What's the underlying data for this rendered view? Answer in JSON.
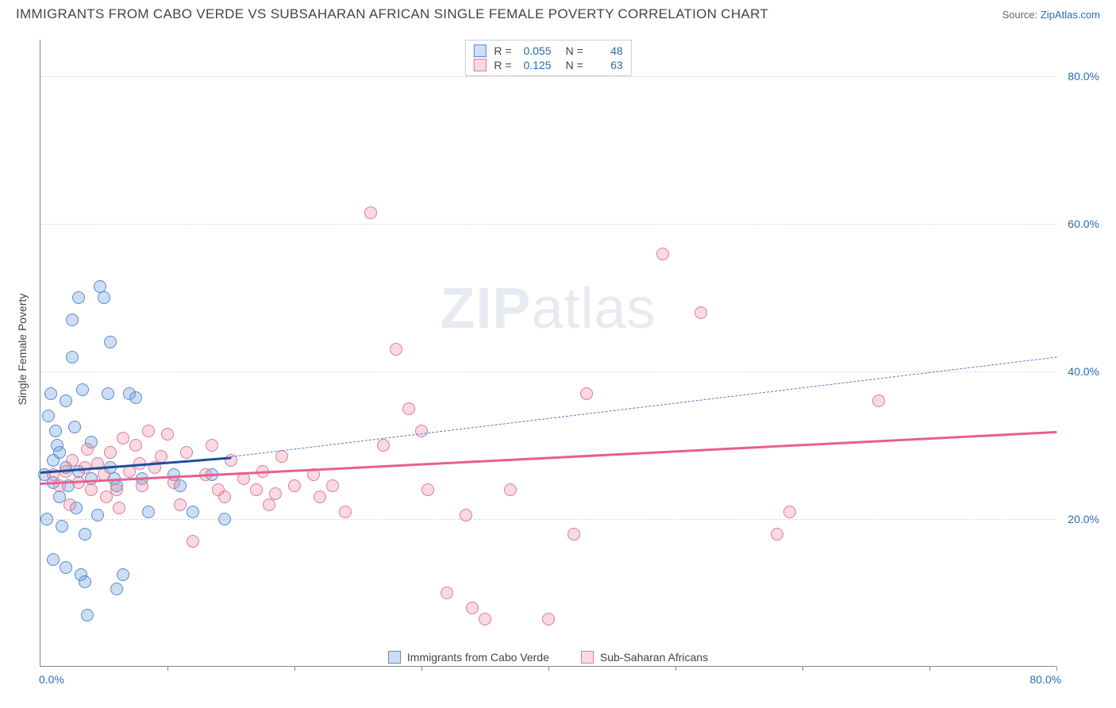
{
  "header": {
    "title": "IMMIGRANTS FROM CABO VERDE VS SUBSAHARAN AFRICAN SINGLE FEMALE POVERTY CORRELATION CHART",
    "source_prefix": "Source: ",
    "source_name": "ZipAtlas.com"
  },
  "chart": {
    "type": "scatter",
    "ylabel": "Single Female Poverty",
    "watermark_bold": "ZIP",
    "watermark_rest": "atlas",
    "xlim": [
      0,
      80
    ],
    "ylim": [
      0,
      85
    ],
    "background_color": "#ffffff",
    "grid_color": "#dddddd",
    "axis_color": "#888888",
    "yticks": [
      20,
      40,
      60,
      80
    ],
    "ytick_labels": [
      "20.0%",
      "40.0%",
      "60.0%",
      "80.0%"
    ],
    "xticks_marks": [
      10,
      20,
      30,
      40,
      50,
      60,
      70,
      80
    ],
    "xtick_labels": [
      {
        "x": 0,
        "label": "0.0%"
      },
      {
        "x": 80,
        "label": "80.0%"
      }
    ],
    "point_radius": 8,
    "point_border_width": 1,
    "series": [
      {
        "id": "cabo_verde",
        "label": "Immigrants from Cabo Verde",
        "fill_color": "rgba(110, 160, 220, 0.35)",
        "stroke_color": "#5a8ac9",
        "R": "0.055",
        "N": "48",
        "trend": {
          "x1": 0,
          "y1": 26.5,
          "x2": 15,
          "y2": 28.5,
          "color": "#1e4e9c",
          "width": 2.5
        },
        "trend_ext": {
          "x1": 15,
          "y1": 28.5,
          "x2": 80,
          "y2": 42.0,
          "color": "#4a7fc7"
        },
        "points": [
          [
            0.3,
            26
          ],
          [
            0.5,
            20
          ],
          [
            0.6,
            34
          ],
          [
            0.8,
            37
          ],
          [
            1.0,
            25
          ],
          [
            1.0,
            28
          ],
          [
            1.2,
            32
          ],
          [
            1.3,
            30
          ],
          [
            1.5,
            29
          ],
          [
            1.5,
            23
          ],
          [
            1.7,
            19
          ],
          [
            2.0,
            27
          ],
          [
            2.0,
            36
          ],
          [
            2.2,
            24.5
          ],
          [
            2.5,
            47
          ],
          [
            2.5,
            42
          ],
          [
            2.8,
            21.5
          ],
          [
            3.0,
            26.5
          ],
          [
            3.0,
            50
          ],
          [
            3.2,
            12.5
          ],
          [
            3.5,
            11.5
          ],
          [
            3.5,
            18
          ],
          [
            3.7,
            7.0
          ],
          [
            4.0,
            25.5
          ],
          [
            4.0,
            30.5
          ],
          [
            4.5,
            20.5
          ],
          [
            4.7,
            51.5
          ],
          [
            5.0,
            50.0
          ],
          [
            5.3,
            37.0
          ],
          [
            5.5,
            44.0
          ],
          [
            5.5,
            27
          ],
          [
            5.8,
            25.5
          ],
          [
            6.0,
            24.5
          ],
          [
            6.0,
            10.5
          ],
          [
            6.5,
            12.5
          ],
          [
            7.0,
            37
          ],
          [
            7.5,
            36.5
          ],
          [
            8.0,
            25.5
          ],
          [
            8.5,
            21
          ],
          [
            10.5,
            26
          ],
          [
            11.0,
            24.5
          ],
          [
            12.0,
            21
          ],
          [
            13.5,
            26
          ],
          [
            14.5,
            20
          ],
          [
            1.0,
            14.5
          ],
          [
            2.0,
            13.5
          ],
          [
            2.7,
            32.5
          ],
          [
            3.3,
            37.5
          ]
        ]
      },
      {
        "id": "subsaharan",
        "label": "Sub-Saharan Africans",
        "fill_color": "rgba(235, 130, 160, 0.3)",
        "stroke_color": "#e07a9a",
        "R": "0.125",
        "N": "63",
        "trend": {
          "x1": 0,
          "y1": 25.0,
          "x2": 80,
          "y2": 32.0,
          "color": "#e85f8e",
          "width": 2.5
        },
        "points": [
          [
            1.0,
            26
          ],
          [
            1.5,
            24.5
          ],
          [
            2.0,
            26.5
          ],
          [
            2.5,
            28
          ],
          [
            3.0,
            25
          ],
          [
            3.5,
            27
          ],
          [
            4.0,
            24
          ],
          [
            4.5,
            27.5
          ],
          [
            5.0,
            26
          ],
          [
            5.5,
            29
          ],
          [
            6.0,
            24
          ],
          [
            6.5,
            31
          ],
          [
            7.0,
            26.5
          ],
          [
            7.5,
            30
          ],
          [
            8.0,
            24.5
          ],
          [
            8.5,
            32
          ],
          [
            9.0,
            27
          ],
          [
            9.5,
            28.5
          ],
          [
            10.0,
            31.5
          ],
          [
            10.5,
            25
          ],
          [
            11.0,
            22
          ],
          [
            11.5,
            29
          ],
          [
            12.0,
            17
          ],
          [
            13.0,
            26
          ],
          [
            13.5,
            30
          ],
          [
            14.0,
            24
          ],
          [
            14.5,
            23
          ],
          [
            15.0,
            28
          ],
          [
            16.0,
            25.5
          ],
          [
            17.0,
            24
          ],
          [
            17.5,
            26.5
          ],
          [
            18.0,
            22
          ],
          [
            18.5,
            23.5
          ],
          [
            19.0,
            28.5
          ],
          [
            20.0,
            24.5
          ],
          [
            21.5,
            26
          ],
          [
            22.0,
            23
          ],
          [
            23.0,
            24.5
          ],
          [
            24.0,
            21
          ],
          [
            26.0,
            61.5
          ],
          [
            27.0,
            30
          ],
          [
            28.0,
            43
          ],
          [
            29.0,
            35
          ],
          [
            30.0,
            32
          ],
          [
            30.5,
            24
          ],
          [
            32.0,
            10
          ],
          [
            33.5,
            20.5
          ],
          [
            34.0,
            8
          ],
          [
            35.0,
            6.5
          ],
          [
            37.0,
            24
          ],
          [
            40.0,
            6.5
          ],
          [
            42.0,
            18
          ],
          [
            43.0,
            37
          ],
          [
            49.0,
            56
          ],
          [
            52.0,
            48
          ],
          [
            58.0,
            18
          ],
          [
            59.0,
            21
          ],
          [
            66.0,
            36
          ],
          [
            2.3,
            22
          ],
          [
            5.2,
            23
          ],
          [
            7.8,
            27.5
          ],
          [
            3.7,
            29.5
          ],
          [
            6.2,
            21.5
          ]
        ]
      }
    ],
    "legend_top": {
      "r_label": "R =",
      "n_label": "N ="
    }
  }
}
